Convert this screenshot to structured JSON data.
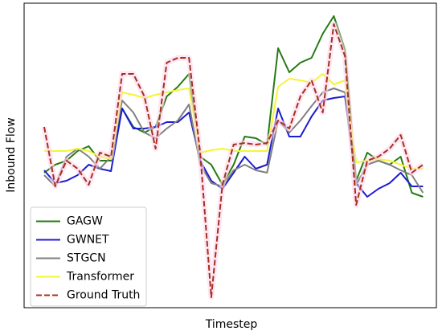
{
  "chart_data": {
    "type": "line",
    "xlabel": "Timestep",
    "ylabel": "Inbound Flow",
    "x": [
      0,
      1,
      2,
      3,
      4,
      5,
      6,
      7,
      8,
      9,
      10,
      11,
      12,
      13,
      14,
      15,
      16,
      17,
      18,
      19,
      20,
      21,
      22,
      23,
      24,
      25,
      26,
      27,
      28,
      29,
      30,
      31,
      32,
      33,
      34
    ],
    "xlim": [
      -1.8,
      35.2
    ],
    "ylim": [
      0,
      379
    ],
    "legend": "lower left",
    "series": [
      {
        "name": "GAGW",
        "color": "#267a14",
        "linestyle": "solid",
        "values": [
          168,
          178,
          183,
          195,
          201,
          183,
          183,
          248,
          225,
          218,
          225,
          263,
          275,
          291,
          188,
          178,
          153,
          178,
          213,
          211,
          203,
          323,
          293,
          305,
          311,
          341,
          363,
          321,
          158,
          193,
          183,
          178,
          188,
          143,
          138
        ]
      },
      {
        "name": "GWNET",
        "color": "#1c1cd0",
        "linestyle": "solid",
        "values": [
          171,
          155,
          158,
          165,
          178,
          173,
          170,
          248,
          223,
          223,
          225,
          231,
          231,
          243,
          183,
          158,
          148,
          168,
          188,
          173,
          178,
          248,
          213,
          213,
          238,
          258,
          261,
          263,
          155,
          138,
          148,
          155,
          168,
          151,
          151
        ]
      },
      {
        "name": "STGCN",
        "color": "#808080",
        "linestyle": "solid",
        "values": [
          165,
          151,
          188,
          198,
          188,
          173,
          188,
          258,
          243,
          218,
          211,
          223,
          233,
          253,
          178,
          155,
          151,
          171,
          178,
          171,
          168,
          233,
          218,
          233,
          251,
          268,
          273,
          268,
          153,
          178,
          183,
          178,
          171,
          165,
          143
        ]
      },
      {
        "name": "Transformer",
        "color": "#f5f532",
        "linestyle": "solid",
        "values": [
          195,
          195,
          195,
          198,
          195,
          188,
          185,
          268,
          265,
          261,
          265,
          268,
          271,
          273,
          193,
          196,
          198,
          195,
          195,
          195,
          195,
          275,
          285,
          283,
          280,
          291,
          278,
          283,
          181,
          183,
          185,
          183,
          178,
          173,
          173
        ]
      },
      {
        "name": "Ground Truth",
        "color": "#a5301c",
        "linestyle": "dashed",
        "values": [
          225,
          151,
          183,
          173,
          153,
          193,
          188,
          291,
          291,
          263,
          198,
          305,
          311,
          311,
          193,
          13,
          153,
          203,
          205,
          203,
          205,
          233,
          223,
          263,
          283,
          243,
          353,
          313,
          128,
          183,
          188,
          198,
          215,
          168,
          178
        ]
      }
    ]
  }
}
